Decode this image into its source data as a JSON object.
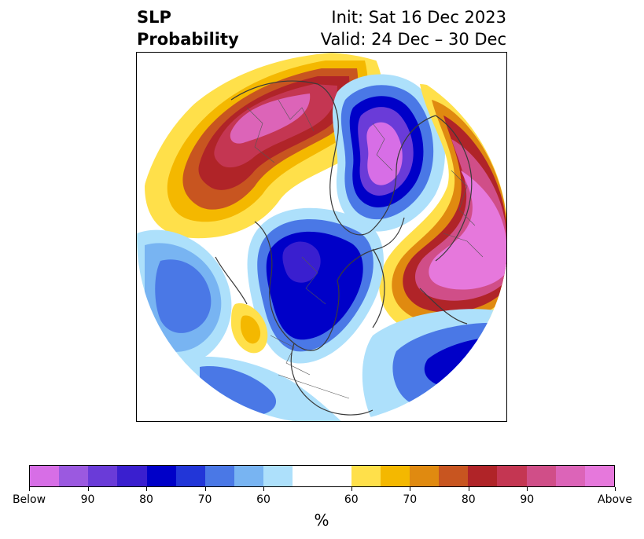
{
  "header": {
    "title_line1": "SLP",
    "title_line2": "Probability",
    "init": "Init: Sat 16 Dec 2023",
    "valid": "Valid: 24 Dec – 30 Dec"
  },
  "colorbar": {
    "unit": "%",
    "colors_below": [
      "#d76ee6",
      "#9b59e0",
      "#6a3bd8",
      "#3a1fcf",
      "#0000c8",
      "#2236d8",
      "#4a78e6",
      "#78b4f2",
      "#ade0fb"
    ],
    "color_neutral": "#ffffff",
    "colors_above": [
      "#ffe04a",
      "#f4b800",
      "#e08a10",
      "#c85520",
      "#b02428",
      "#c43652",
      "#d04e88",
      "#dc64b8",
      "#e678dc"
    ],
    "tick_labels": [
      "Below",
      "90",
      "80",
      "70",
      "60",
      "60",
      "70",
      "80",
      "90",
      "Above"
    ]
  }
}
